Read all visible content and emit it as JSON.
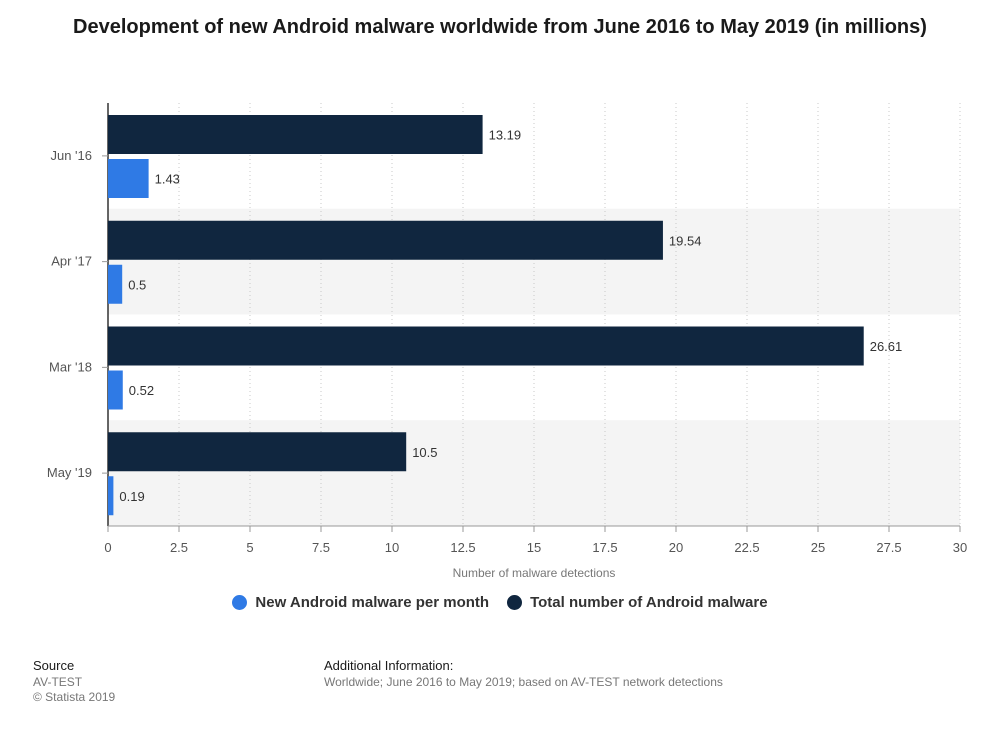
{
  "title": "Development of new Android malware worldwide from June 2016 to May 2019 (in millions)",
  "colors": {
    "new": "#2f7ae5",
    "total": "#10263f",
    "band": "#f4f4f4"
  },
  "chart_data": {
    "type": "bar",
    "orientation": "horizontal",
    "categories": [
      "Jun '16",
      "Apr '17",
      "Mar '18",
      "May '19"
    ],
    "series": [
      {
        "name": "Total number of Android malware",
        "values": [
          13.19,
          19.54,
          26.61,
          10.5
        ]
      },
      {
        "name": "New Android malware per month",
        "values": [
          1.43,
          0.5,
          0.52,
          0.19
        ]
      }
    ],
    "value_labels": {
      "total": [
        "13.19",
        "19.54",
        "26.61",
        "10.5"
      ],
      "new": [
        "1.43",
        "0.5",
        "0.52",
        "0.19"
      ]
    },
    "xlabel": "Number of malware detections",
    "ylabel": "",
    "xlim": [
      0,
      30
    ],
    "x_ticks": [
      "0",
      "2.5",
      "5",
      "7.5",
      "10",
      "12.5",
      "15",
      "17.5",
      "20",
      "22.5",
      "25",
      "27.5",
      "30"
    ],
    "grid": true,
    "legend_position": "bottom-center"
  },
  "legend": {
    "new_label": "New Android malware per month",
    "total_label": "Total number of Android malware"
  },
  "source": {
    "heading": "Source",
    "name": "AV-TEST",
    "copyright": "© Statista 2019"
  },
  "additional_info": {
    "heading": "Additional Information:",
    "text": "Worldwide; June 2016 to May 2019; based on AV-TEST network detections"
  }
}
